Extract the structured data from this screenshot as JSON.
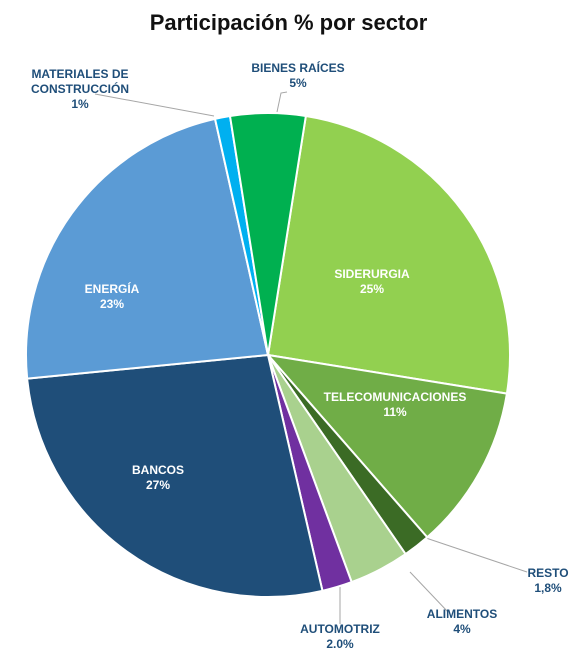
{
  "chart_data": {
    "type": "pie",
    "title": "Participación % por sector",
    "categories": [
      "SIDERURGIA",
      "TELECOMUNICACIONES",
      "RESTO",
      "ALIMENTOS",
      "AUTOMOTRIZ",
      "BANCOS",
      "ENERGÍA",
      "MATERIALES DE CONSTRUCCIÓN",
      "BIENES RAÍCES"
    ],
    "values": [
      25,
      11,
      1.8,
      4,
      2.0,
      27,
      23,
      1,
      5
    ],
    "value_labels": [
      "25%",
      "11%",
      "1,8%",
      "4%",
      "2.0%",
      "27%",
      "23%",
      "1%",
      "5%"
    ],
    "colors": [
      "#92d050",
      "#70ad47",
      "#3b6b25",
      "#a9d18e",
      "#7030a0",
      "#1f4e79",
      "#5b9bd5",
      "#00b0f0",
      "#00b050"
    ]
  }
}
